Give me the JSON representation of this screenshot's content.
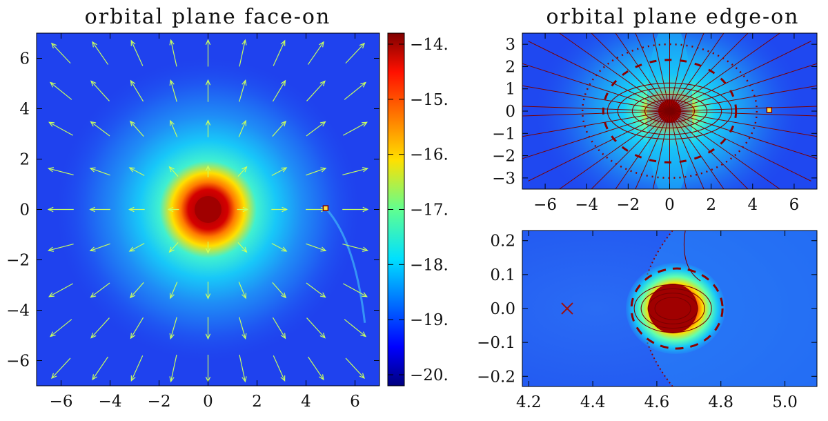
{
  "colors": {
    "background_blue": "#1f3ff0",
    "arrow": "#c8ff60",
    "contour": "#7a0000",
    "dashed_contour": "#8b0000",
    "marker": "#9b1010"
  },
  "chart_data": [
    {
      "type": "heatmap",
      "title": "orbital plane face-on",
      "xlim": [
        -7,
        7
      ],
      "ylim": [
        -7,
        7
      ],
      "xticks": [
        "−6",
        "−4",
        "−2",
        "0",
        "2",
        "4",
        "6"
      ],
      "yticks": [
        "6",
        "4",
        "2",
        "0",
        "−2",
        "−4",
        "−6"
      ],
      "colorbar": {
        "range": [
          -20.2,
          -13.8
        ],
        "ticks": [
          "−14.",
          "−15.",
          "−16.",
          "−17.",
          "−18.",
          "−19.",
          "−20."
        ],
        "colormap": "jet"
      },
      "central_source": {
        "x": 0,
        "y": 0
      },
      "companion": {
        "x": 4.8,
        "y": 0.05
      },
      "overlay": "velocity vectors (radial outflow)"
    },
    {
      "type": "heatmap",
      "title": "orbital plane edge-on",
      "xlim": [
        -7.1,
        7.1
      ],
      "ylim": [
        -3.5,
        3.5
      ],
      "xticks": [
        "−6",
        "−4",
        "−2",
        "0",
        "2",
        "4",
        "6"
      ],
      "yticks": [
        "3",
        "2",
        "1",
        "0",
        "−1",
        "−2",
        "−3"
      ],
      "central_source": {
        "x": 0,
        "y": 0
      },
      "companion": {
        "x": 4.8,
        "y": 0.05
      },
      "overlay": "magnetic field lines (solid) and surface contours (dashed, dotted)"
    },
    {
      "type": "heatmap",
      "title": "",
      "xlim": [
        4.18,
        5.1
      ],
      "ylim": [
        -0.23,
        0.23
      ],
      "xticks": [
        "4.2",
        "4.4",
        "4.6",
        "4.8",
        "5.0"
      ],
      "yticks": [
        "0.2",
        "0.1",
        "0.0",
        "−0.1",
        "−0.2"
      ],
      "planet_center": {
        "x": 4.65,
        "y": 0.0
      },
      "cross_marker": {
        "x": 4.32,
        "y": 0.0
      },
      "overlay": "closed field loops, dashed and dotted contours"
    }
  ]
}
